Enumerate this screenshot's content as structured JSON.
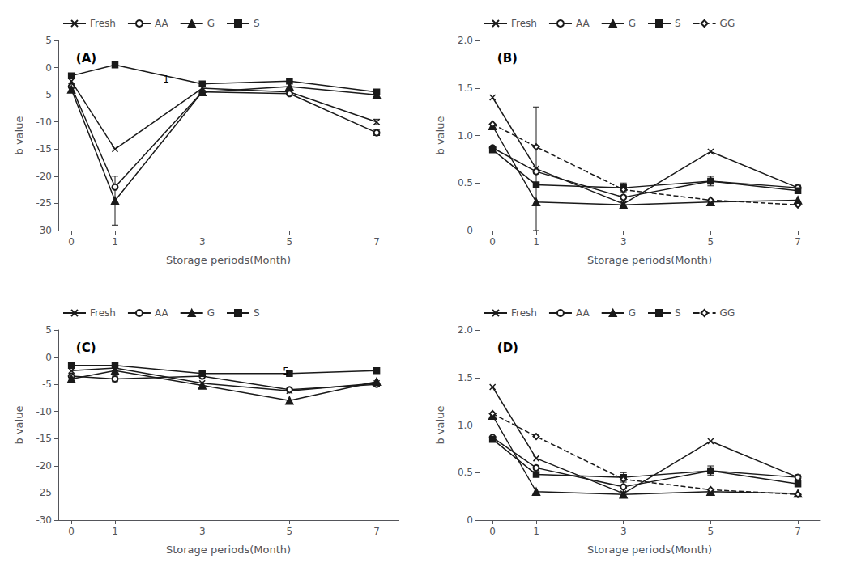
{
  "chart_data": [
    {
      "type": "line",
      "title": "(A)",
      "xlabel": "Storage periods(Month)",
      "ylabel": "b value",
      "x": [
        0,
        1,
        3,
        5,
        7
      ],
      "xlim": [
        -0.3,
        7.5
      ],
      "xticks": [
        0,
        1,
        3,
        5,
        7
      ],
      "ylim": [
        -30,
        5
      ],
      "yticks": [
        -30,
        -25,
        -20,
        -15,
        -10,
        -5,
        0,
        5
      ],
      "grid": false,
      "legend": "top",
      "annotations": [
        {
          "x": 2.1,
          "y": -3.0,
          "text": "1"
        }
      ],
      "series": [
        {
          "name": "Fresh",
          "color": "#1a1a1a",
          "marker": "x",
          "line_style": "solid",
          "values": [
            -2.5,
            -15.0,
            -3.8,
            -4.5,
            -10.0
          ],
          "errors": [
            0,
            0,
            0,
            0,
            0.5
          ]
        },
        {
          "name": "AA",
          "color": "#1a1a1a",
          "marker": "open_circle",
          "line_style": "solid",
          "values": [
            -3.5,
            -22.0,
            -4.5,
            -4.8,
            -12.0
          ],
          "errors": [
            0,
            0,
            0,
            0,
            0.5
          ]
        },
        {
          "name": "G",
          "color": "#1a1a1a",
          "marker": "triangle",
          "line_style": "solid",
          "values": [
            -4.0,
            -24.5,
            -4.5,
            -3.5,
            -5.0
          ],
          "errors": [
            0,
            4.5,
            0,
            0,
            0
          ]
        },
        {
          "name": "S",
          "color": "#1a1a1a",
          "marker": "square",
          "line_style": "solid",
          "values": [
            -1.5,
            0.5,
            -3.0,
            -2.5,
            -4.5
          ],
          "errors": [
            0,
            0,
            0,
            0,
            0
          ]
        }
      ]
    },
    {
      "type": "line",
      "title": "(B)",
      "xlabel": "Storage periods(Month)",
      "ylabel": "b value",
      "x": [
        0,
        1,
        3,
        5,
        7
      ],
      "xlim": [
        -0.3,
        7.5
      ],
      "xticks": [
        0,
        1,
        3,
        5,
        7
      ],
      "ylim": [
        0,
        2
      ],
      "yticks": [
        0,
        0.5,
        {
          "value": 1.0,
          "label": "1.0"
        },
        1.5,
        {
          "value": 2.0,
          "label": "2.0"
        }
      ],
      "grid": false,
      "legend": "top",
      "series": [
        {
          "name": "Fresh",
          "color": "#1a1a1a",
          "marker": "x",
          "line_style": "solid",
          "values": [
            1.4,
            0.65,
            0.28,
            0.83,
            0.45
          ],
          "errors": [
            0,
            0.65,
            0,
            0,
            0
          ]
        },
        {
          "name": "AA",
          "color": "#1a1a1a",
          "marker": "open_circle",
          "line_style": "solid",
          "values": [
            0.87,
            0.62,
            0.35,
            0.52,
            0.45
          ],
          "errors": [
            0,
            0,
            0,
            0,
            0
          ]
        },
        {
          "name": "G",
          "color": "#1a1a1a",
          "marker": "triangle",
          "line_style": "solid",
          "values": [
            1.1,
            0.3,
            0.27,
            0.3,
            0.32
          ],
          "errors": [
            0,
            0,
            0,
            0,
            0
          ]
        },
        {
          "name": "S",
          "color": "#1a1a1a",
          "marker": "square",
          "line_style": "solid",
          "values": [
            0.85,
            0.48,
            0.45,
            0.52,
            0.42
          ],
          "errors": [
            0,
            0,
            0.05,
            0.05,
            0
          ]
        },
        {
          "name": "GG",
          "color": "#1a1a1a",
          "marker": "open_diamond",
          "line_style": "dashed",
          "values": [
            1.12,
            0.88,
            0.43,
            0.32,
            0.27
          ],
          "errors": [
            0,
            0,
            0,
            0,
            0
          ]
        }
      ]
    },
    {
      "type": "line",
      "title": "(C)",
      "xlabel": "Storage periods(Month)",
      "ylabel": "b value",
      "x": [
        0,
        1,
        3,
        5,
        7
      ],
      "xlim": [
        -0.3,
        7.5
      ],
      "xticks": [
        0,
        1,
        3,
        5,
        7
      ],
      "ylim": [
        -30,
        5
      ],
      "yticks": [
        -30,
        -25,
        -20,
        -15,
        -10,
        -5,
        0,
        5
      ],
      "grid": false,
      "legend": "top",
      "annotations": [
        {
          "x": 4.85,
          "y": -3.5,
          "text": "5"
        }
      ],
      "series": [
        {
          "name": "Fresh",
          "color": "#1a1a1a",
          "marker": "x",
          "line_style": "solid",
          "values": [
            -2.5,
            -2.0,
            -4.8,
            -6.2,
            -4.8
          ],
          "errors": [
            0,
            0.5,
            0,
            0,
            0
          ]
        },
        {
          "name": "AA",
          "color": "#1a1a1a",
          "marker": "open_circle",
          "line_style": "solid",
          "values": [
            -3.5,
            -4.0,
            -3.5,
            -6.0,
            -5.0
          ],
          "errors": [
            0,
            0.5,
            0,
            0,
            0
          ]
        },
        {
          "name": "G",
          "color": "#1a1a1a",
          "marker": "triangle",
          "line_style": "solid",
          "values": [
            -4.0,
            -2.5,
            -5.2,
            -8.0,
            -4.5
          ],
          "errors": [
            0,
            0,
            0,
            0,
            0
          ]
        },
        {
          "name": "S",
          "color": "#1a1a1a",
          "marker": "square",
          "line_style": "solid",
          "values": [
            -1.5,
            -1.5,
            -3.0,
            -3.0,
            -2.5
          ],
          "errors": [
            0,
            0.3,
            0.3,
            0.3,
            0
          ]
        }
      ]
    },
    {
      "type": "line",
      "title": "(D)",
      "xlabel": "Storage periods(Month)",
      "ylabel": "b value",
      "x": [
        0,
        1,
        3,
        5,
        7
      ],
      "xlim": [
        -0.3,
        7.5
      ],
      "xticks": [
        0,
        1,
        3,
        5,
        7
      ],
      "ylim": [
        0,
        2
      ],
      "yticks": [
        0,
        0.5,
        {
          "value": 1.0,
          "label": "1.0"
        },
        1.5,
        {
          "value": 2.0,
          "label": "2.0"
        }
      ],
      "grid": false,
      "legend": "top",
      "series": [
        {
          "name": "Fresh",
          "color": "#1a1a1a",
          "marker": "x",
          "line_style": "solid",
          "values": [
            1.4,
            0.65,
            0.28,
            0.83,
            0.45
          ],
          "errors": [
            0,
            0,
            0,
            0,
            0
          ]
        },
        {
          "name": "AA",
          "color": "#1a1a1a",
          "marker": "open_circle",
          "line_style": "solid",
          "values": [
            0.87,
            0.55,
            0.35,
            0.52,
            0.45
          ],
          "errors": [
            0,
            0,
            0,
            0,
            0
          ]
        },
        {
          "name": "G",
          "color": "#1a1a1a",
          "marker": "triangle",
          "line_style": "solid",
          "values": [
            1.1,
            0.3,
            0.27,
            0.3,
            0.28
          ],
          "errors": [
            0,
            0,
            0,
            0,
            0
          ]
        },
        {
          "name": "S",
          "color": "#1a1a1a",
          "marker": "square",
          "line_style": "solid",
          "values": [
            0.85,
            0.48,
            0.45,
            0.52,
            0.38
          ],
          "errors": [
            0,
            0,
            0.05,
            0.05,
            0
          ]
        },
        {
          "name": "GG",
          "color": "#1a1a1a",
          "marker": "open_diamond",
          "line_style": "dashed",
          "values": [
            1.12,
            0.88,
            0.43,
            0.32,
            0.27
          ],
          "errors": [
            0,
            0,
            0,
            0,
            0
          ]
        }
      ]
    }
  ]
}
